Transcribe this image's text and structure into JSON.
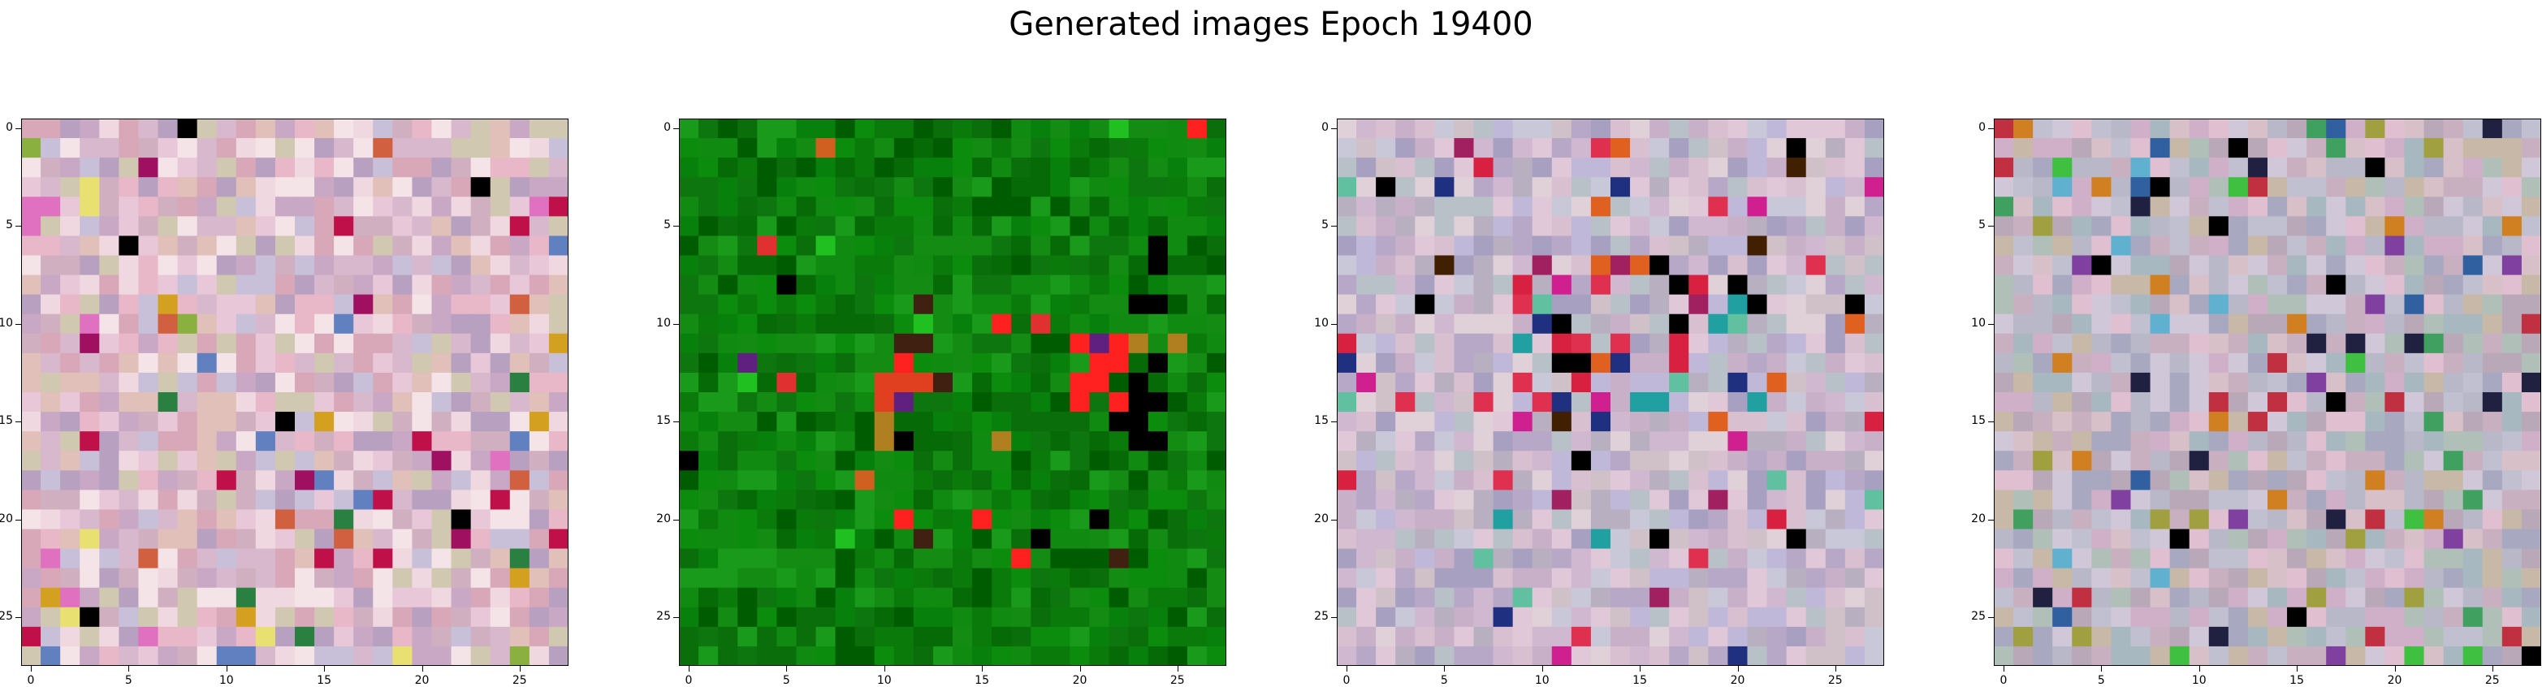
{
  "figure": {
    "title": "Generated images Epoch 19400"
  },
  "axes": {
    "x_ticks": [
      "0",
      "5",
      "10",
      "15",
      "20",
      "25"
    ],
    "y_ticks": [
      "0",
      "5",
      "10",
      "15",
      "20",
      "25"
    ],
    "grid_size": 28
  },
  "panels": [
    {
      "id": "sample-1",
      "style": "pastel-noise",
      "palette": [
        "#d8b8cc",
        "#e8c8d8",
        "#c8a8c4",
        "#f0d8e0",
        "#d0b0c0",
        "#e0c0b8",
        "#c8c0d8",
        "#f4e4e8",
        "#d8a8b8",
        "#b8a0c0",
        "#e8b8c8",
        "#d0c8b0"
      ],
      "accents": [
        "#c0104a",
        "#d4a020",
        "#2a8040",
        "#a01060",
        "#e070c0",
        "#d06040",
        "#8ab040",
        "#6080c0",
        "#000000",
        "#e8e070"
      ]
    },
    {
      "id": "sample-2",
      "style": "green-texture",
      "palette": [
        "#0a7a0a",
        "#108a10",
        "#066a06",
        "#0c8c0c",
        "#148c14",
        "#005c00",
        "#0a6e0a",
        "#1a9a1a",
        "#08800c",
        "#0e760e"
      ],
      "accents": [
        "#e03030",
        "#d06020",
        "#b08020",
        "#402010",
        "#000000",
        "#20c020",
        "#ff2020",
        "#602080"
      ]
    },
    {
      "id": "sample-3",
      "style": "pastel-noise-center",
      "palette": [
        "#c8b0c8",
        "#d0b8d0",
        "#b8a8c8",
        "#d8c0d0",
        "#c0b8d8",
        "#e0c8d8",
        "#b8b0c0",
        "#d0c0c8",
        "#a8a0c0",
        "#c8c8d8",
        "#e0d0d8",
        "#b8c0c8"
      ],
      "accents": [
        "#e03050",
        "#d82040",
        "#203080",
        "#000000",
        "#a02060",
        "#20a0a0",
        "#e06020",
        "#60c0a0",
        "#d02090",
        "#402000"
      ]
    },
    {
      "id": "sample-4",
      "style": "mixed-noise",
      "palette": [
        "#c8b0c0",
        "#b8b8c8",
        "#d0b0c8",
        "#a8b8c0",
        "#c0c0d0",
        "#d8c0c8",
        "#b8a8b8",
        "#c8b8a8",
        "#b0c0b8",
        "#d0c8d8",
        "#e0c0d0",
        "#a8a8c0"
      ],
      "accents": [
        "#000000",
        "#3060a0",
        "#40a060",
        "#c03040",
        "#8040a0",
        "#60b0d0",
        "#d08020",
        "#202040",
        "#40c040",
        "#a0a040"
      ]
    }
  ]
}
